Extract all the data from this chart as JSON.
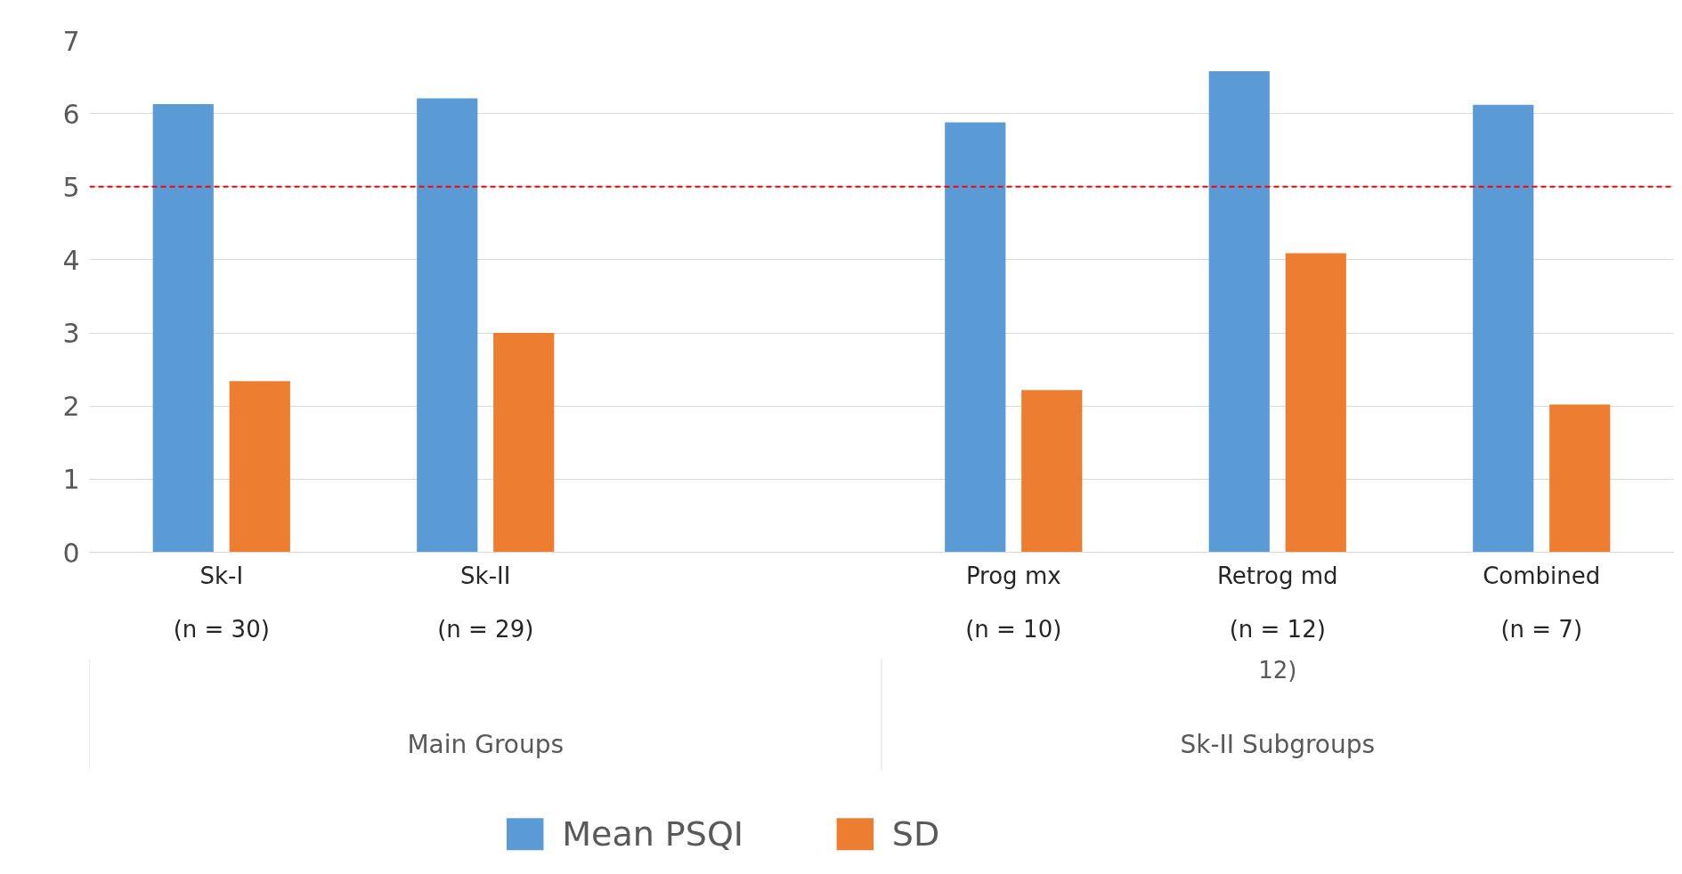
{
  "chart_data": {
    "type": "bar",
    "categories": [
      "Sk-I\n(n = 30)",
      "Sk-II\n(n = 29)",
      null,
      "Prog mx\n(n = 10)",
      "Retrog md\n(n = 12)",
      "Combined\n(n = 7)"
    ],
    "series": [
      {
        "name": "Mean PSQI",
        "color": "#5b9bd5",
        "values": [
          6.13,
          6.21,
          null,
          5.88,
          6.58,
          6.12
        ]
      },
      {
        "name": "SD",
        "color": "#ed7d31",
        "values": [
          2.34,
          3.0,
          null,
          2.22,
          4.09,
          2.02
        ]
      }
    ],
    "ylim": [
      0,
      7
    ],
    "yticks": [
      0,
      1,
      2,
      3,
      4,
      5,
      6,
      7
    ],
    "grid": "y",
    "legend": "bottom",
    "ref_lines": [
      {
        "axis": "y",
        "value": 5,
        "color": "#ff0000",
        "line_style": "dashed"
      }
    ],
    "annotations": [
      "12)",
      "Main Groups",
      "Sk-II Subgroups"
    ]
  }
}
